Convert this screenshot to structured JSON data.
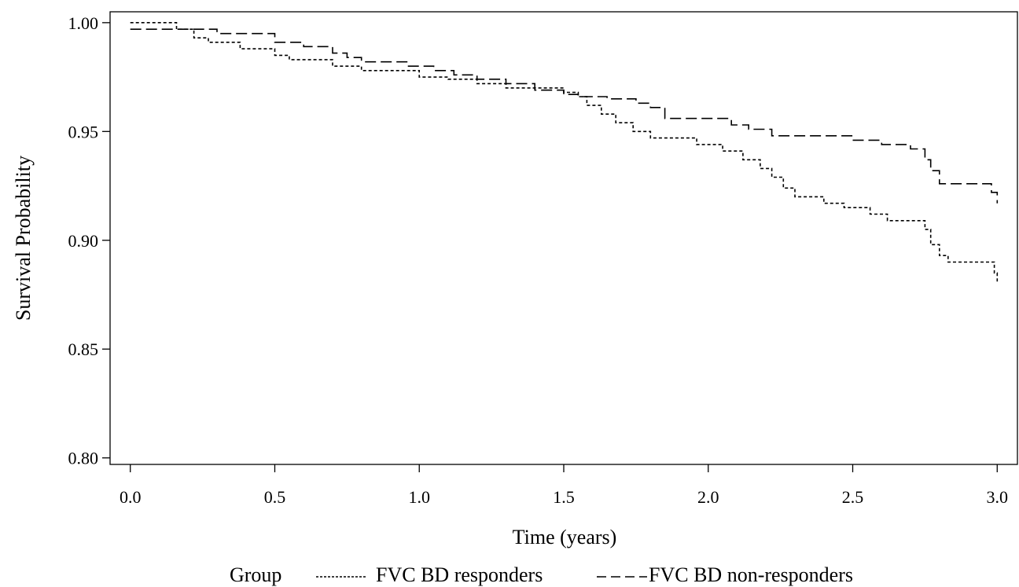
{
  "chart_data": {
    "type": "line",
    "step": true,
    "xlabel": "Time (years)",
    "ylabel": "Survival Probability",
    "xlim": [
      -0.07,
      3.07
    ],
    "ylim": [
      0.797,
      1.005
    ],
    "xticks": [
      0.0,
      0.5,
      1.0,
      1.5,
      2.0,
      2.5,
      3.0
    ],
    "xtick_labels": [
      "0.0",
      "0.5",
      "1.0",
      "1.5",
      "2.0",
      "2.5",
      "3.0"
    ],
    "yticks": [
      0.8,
      0.85,
      0.9,
      0.95,
      1.0
    ],
    "ytick_labels": [
      "0.80",
      "0.85",
      "0.90",
      "0.95",
      "1.00"
    ],
    "grid": false,
    "legend": {
      "title": "Group",
      "placement": "bottom",
      "responders_label": "FVC BD responders",
      "nonresponders_label": "FVC BD non-responders"
    },
    "series": [
      {
        "name": "FVC BD responders",
        "dash": "4 3",
        "x": [
          0.0,
          0.16,
          0.22,
          0.27,
          0.38,
          0.5,
          0.55,
          0.7,
          0.8,
          1.0,
          1.1,
          1.2,
          1.3,
          1.5,
          1.55,
          1.58,
          1.63,
          1.68,
          1.74,
          1.8,
          1.96,
          2.05,
          2.12,
          2.18,
          2.22,
          2.26,
          2.3,
          2.4,
          2.47,
          2.56,
          2.62,
          2.68,
          2.75,
          2.77,
          2.8,
          2.83,
          2.99,
          3.0
        ],
        "y": [
          1.0,
          0.997,
          0.993,
          0.991,
          0.988,
          0.985,
          0.983,
          0.98,
          0.978,
          0.975,
          0.974,
          0.972,
          0.97,
          0.968,
          0.966,
          0.962,
          0.958,
          0.954,
          0.95,
          0.947,
          0.944,
          0.941,
          0.937,
          0.933,
          0.929,
          0.924,
          0.92,
          0.917,
          0.915,
          0.912,
          0.909,
          0.909,
          0.905,
          0.898,
          0.893,
          0.89,
          0.885,
          0.881
        ]
      },
      {
        "name": "FVC BD non-responders",
        "dash": "14 6",
        "x": [
          0.0,
          0.2,
          0.3,
          0.5,
          0.6,
          0.7,
          0.75,
          0.8,
          0.96,
          1.05,
          1.12,
          1.2,
          1.3,
          1.4,
          1.5,
          1.55,
          1.65,
          1.75,
          1.8,
          1.85,
          2.08,
          2.14,
          2.22,
          2.27,
          2.5,
          2.6,
          2.7,
          2.75,
          2.77,
          2.8,
          2.98,
          3.0
        ],
        "y": [
          0.997,
          0.997,
          0.995,
          0.991,
          0.989,
          0.986,
          0.984,
          0.982,
          0.98,
          0.978,
          0.976,
          0.974,
          0.972,
          0.969,
          0.967,
          0.966,
          0.965,
          0.963,
          0.961,
          0.956,
          0.953,
          0.951,
          0.948,
          0.948,
          0.946,
          0.944,
          0.942,
          0.937,
          0.932,
          0.926,
          0.922,
          0.917
        ]
      }
    ]
  }
}
